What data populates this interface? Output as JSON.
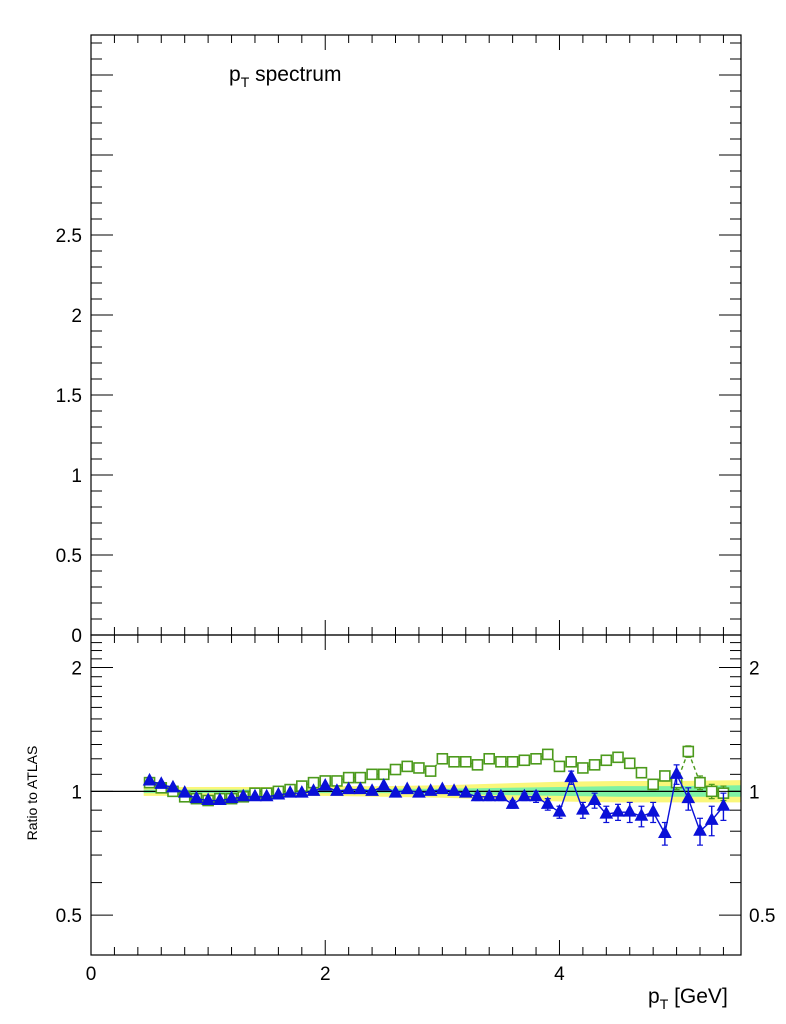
{
  "chart_data": [
    {
      "type": "line",
      "panel": "main",
      "title_main": "p",
      "title_sub": "T",
      "title_rest": " spectrum",
      "ylim": [
        0,
        3.75
      ],
      "xlim": [
        0,
        5.55
      ],
      "y_tick_labels": [
        "0",
        "0.5",
        "1",
        "1.5",
        "2",
        "2.5"
      ],
      "y_tick_values": [
        0,
        0.5,
        1,
        1.5,
        2,
        2.5
      ],
      "series": []
    },
    {
      "type": "scatter",
      "panel": "ratio",
      "ylabel": "Ratio to ATLAS",
      "xlabel_main": "p",
      "xlabel_sub": "T",
      "xlabel_rest": " [GeV]",
      "ylim": [
        0.4,
        2.4
      ],
      "xlim": [
        0,
        5.55
      ],
      "log_y": true,
      "x_tick_labels": [
        "0",
        "2",
        "4"
      ],
      "x_tick_values": [
        0,
        2,
        4
      ],
      "y_tick_labels": [
        "0.5",
        "1",
        "2"
      ],
      "y_tick_values": [
        0.5,
        1,
        2
      ],
      "reference_line": 1,
      "colors": {
        "reference": "#000000",
        "band_outer": "#faf77a",
        "band_inner": "#7ef2a4",
        "series_green": "#4c9a1c",
        "series_blue": "#0a10d8"
      },
      "band": {
        "x": [
          0.45,
          1.0,
          1.5,
          2.0,
          2.5,
          3.0,
          3.5,
          4.0,
          4.5,
          5.0,
          5.55
        ],
        "outer_lo": [
          0.975,
          0.975,
          0.975,
          0.975,
          0.97,
          0.965,
          0.955,
          0.945,
          0.94,
          0.94,
          0.94
        ],
        "outer_hi": [
          1.025,
          1.025,
          1.025,
          1.03,
          1.03,
          1.035,
          1.045,
          1.055,
          1.06,
          1.06,
          1.065
        ],
        "inner_lo": [
          0.99,
          0.99,
          0.99,
          0.99,
          0.99,
          0.985,
          0.98,
          0.975,
          0.97,
          0.97,
          0.97
        ],
        "inner_hi": [
          1.01,
          1.01,
          1.01,
          1.01,
          1.015,
          1.015,
          1.02,
          1.025,
          1.03,
          1.03,
          1.035
        ]
      },
      "series": [
        {
          "marker": "open-square",
          "line": "dashed",
          "color": "#4c9a1c",
          "x": [
            0.5,
            0.6,
            0.7,
            0.8,
            0.9,
            1.0,
            1.1,
            1.2,
            1.3,
            1.4,
            1.5,
            1.6,
            1.7,
            1.8,
            1.9,
            2.0,
            2.1,
            2.2,
            2.3,
            2.4,
            2.5,
            2.6,
            2.7,
            2.8,
            2.9,
            3.0,
            3.1,
            3.2,
            3.3,
            3.4,
            3.5,
            3.6,
            3.7,
            3.8,
            3.9,
            4.0,
            4.1,
            4.2,
            4.3,
            4.4,
            4.5,
            4.6,
            4.7,
            4.8,
            4.9,
            5.0,
            5.1,
            5.2,
            5.3,
            5.4
          ],
          "y": [
            1.05,
            1.02,
            1.0,
            0.97,
            0.96,
            0.95,
            0.96,
            0.96,
            0.97,
            0.99,
            0.99,
            1.0,
            1.01,
            1.03,
            1.05,
            1.06,
            1.06,
            1.08,
            1.08,
            1.1,
            1.1,
            1.13,
            1.15,
            1.14,
            1.12,
            1.2,
            1.18,
            1.18,
            1.16,
            1.2,
            1.18,
            1.18,
            1.19,
            1.2,
            1.23,
            1.15,
            1.18,
            1.14,
            1.16,
            1.19,
            1.21,
            1.17,
            1.11,
            1.04,
            1.09,
            1.05,
            1.25,
            1.05,
            1.0,
            0.99
          ],
          "err": [
            0.01,
            0.01,
            0.01,
            0.01,
            0.01,
            0.01,
            0.01,
            0.01,
            0.01,
            0.01,
            0.01,
            0.01,
            0.01,
            0.01,
            0.01,
            0.01,
            0.01,
            0.01,
            0.01,
            0.01,
            0.01,
            0.01,
            0.01,
            0.01,
            0.01,
            0.01,
            0.01,
            0.01,
            0.01,
            0.01,
            0.01,
            0.01,
            0.01,
            0.01,
            0.02,
            0.02,
            0.02,
            0.02,
            0.02,
            0.02,
            0.03,
            0.03,
            0.03,
            0.03,
            0.03,
            0.04,
            0.04,
            0.04,
            0.04,
            0.04
          ]
        },
        {
          "marker": "filled-triangle",
          "line": "solid",
          "color": "#0a10d8",
          "x": [
            0.5,
            0.6,
            0.7,
            0.8,
            0.9,
            1.0,
            1.1,
            1.2,
            1.3,
            1.4,
            1.5,
            1.6,
            1.7,
            1.8,
            1.9,
            2.0,
            2.1,
            2.2,
            2.3,
            2.4,
            2.5,
            2.6,
            2.7,
            2.8,
            2.9,
            3.0,
            3.1,
            3.2,
            3.3,
            3.4,
            3.5,
            3.6,
            3.7,
            3.8,
            3.9,
            4.0,
            4.1,
            4.2,
            4.3,
            4.4,
            4.5,
            4.6,
            4.7,
            4.8,
            4.9,
            5.0,
            5.1,
            5.2,
            5.3,
            5.4
          ],
          "y": [
            1.06,
            1.04,
            1.02,
            0.99,
            0.96,
            0.95,
            0.95,
            0.96,
            0.97,
            0.97,
            0.97,
            0.98,
            0.99,
            0.99,
            1.0,
            1.03,
            1.0,
            1.01,
            1.01,
            1.0,
            1.03,
            0.99,
            1.01,
            0.99,
            1.0,
            1.01,
            1.0,
            0.99,
            0.97,
            0.97,
            0.97,
            0.93,
            0.97,
            0.97,
            0.93,
            0.89,
            1.08,
            0.9,
            0.95,
            0.88,
            0.89,
            0.89,
            0.87,
            0.89,
            0.79,
            1.1,
            0.96,
            0.8,
            0.85,
            0.92
          ],
          "err": [
            0.01,
            0.01,
            0.01,
            0.01,
            0.01,
            0.01,
            0.01,
            0.01,
            0.01,
            0.01,
            0.01,
            0.01,
            0.01,
            0.01,
            0.01,
            0.01,
            0.01,
            0.01,
            0.01,
            0.01,
            0.01,
            0.01,
            0.01,
            0.01,
            0.01,
            0.01,
            0.01,
            0.01,
            0.02,
            0.02,
            0.02,
            0.02,
            0.02,
            0.03,
            0.03,
            0.03,
            0.04,
            0.04,
            0.04,
            0.04,
            0.04,
            0.05,
            0.05,
            0.05,
            0.05,
            0.06,
            0.06,
            0.06,
            0.07,
            0.07
          ]
        }
      ]
    }
  ]
}
